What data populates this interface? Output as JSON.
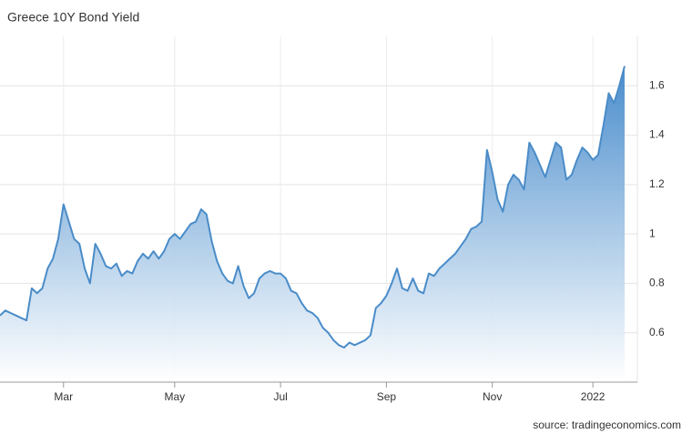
{
  "chart_data": {
    "type": "area",
    "title": "Greece 10Y Bond Yield",
    "source": "source: tradingeconomics.com",
    "color": "#4a8cc8",
    "grid": true,
    "categories": [
      null,
      null,
      null,
      null,
      null,
      null,
      null,
      null,
      null,
      null,
      null,
      null,
      "Mar",
      null,
      null,
      null,
      null,
      null,
      null,
      null,
      null,
      null,
      null,
      null,
      null,
      null,
      null,
      null,
      null,
      null,
      null,
      null,
      null,
      "May",
      null,
      null,
      null,
      null,
      null,
      null,
      null,
      null,
      null,
      null,
      null,
      null,
      null,
      null,
      null,
      null,
      null,
      null,
      null,
      "Jul",
      null,
      null,
      null,
      null,
      null,
      null,
      null,
      null,
      null,
      null,
      null,
      null,
      null,
      null,
      null,
      null,
      null,
      null,
      null,
      "Sep",
      null,
      null,
      null,
      null,
      null,
      null,
      null,
      null,
      null,
      null,
      null,
      null,
      null,
      null,
      null,
      null,
      null,
      null,
      null,
      "Nov",
      null,
      null,
      null,
      null,
      null,
      null,
      null,
      null,
      null,
      null,
      null,
      null,
      null,
      null,
      null,
      null,
      null,
      null,
      "2022",
      null,
      null,
      null,
      null,
      null,
      null
    ],
    "values": [
      0.67,
      0.69,
      0.68,
      0.67,
      0.66,
      0.65,
      0.78,
      0.76,
      0.78,
      0.86,
      0.9,
      0.98,
      1.12,
      1.05,
      0.98,
      0.96,
      0.86,
      0.8,
      0.96,
      0.92,
      0.87,
      0.86,
      0.88,
      0.83,
      0.85,
      0.84,
      0.89,
      0.92,
      0.9,
      0.93,
      0.9,
      0.93,
      0.98,
      1.0,
      0.98,
      1.01,
      1.04,
      1.05,
      1.1,
      1.08,
      0.97,
      0.89,
      0.84,
      0.81,
      0.8,
      0.87,
      0.79,
      0.74,
      0.76,
      0.82,
      0.84,
      0.85,
      0.84,
      0.84,
      0.82,
      0.77,
      0.76,
      0.72,
      0.69,
      0.68,
      0.66,
      0.62,
      0.6,
      0.57,
      0.55,
      0.54,
      0.56,
      0.55,
      0.56,
      0.57,
      0.59,
      0.7,
      0.72,
      0.75,
      0.8,
      0.86,
      0.78,
      0.77,
      0.82,
      0.77,
      0.76,
      0.84,
      0.83,
      0.86,
      0.88,
      0.9,
      0.92,
      0.95,
      0.98,
      1.02,
      1.03,
      1.05,
      1.34,
      1.25,
      1.14,
      1.09,
      1.2,
      1.24,
      1.22,
      1.18,
      1.37,
      1.33,
      1.28,
      1.23,
      1.3,
      1.37,
      1.35,
      1.22,
      1.24,
      1.3,
      1.35,
      1.33,
      1.3,
      1.32,
      1.44,
      1.57,
      1.53,
      1.6,
      1.68
    ],
    "ylim": [
      0.4,
      1.8
    ],
    "yticks": [
      0.6,
      0.8,
      1,
      1.2,
      1.4,
      1.6
    ]
  }
}
